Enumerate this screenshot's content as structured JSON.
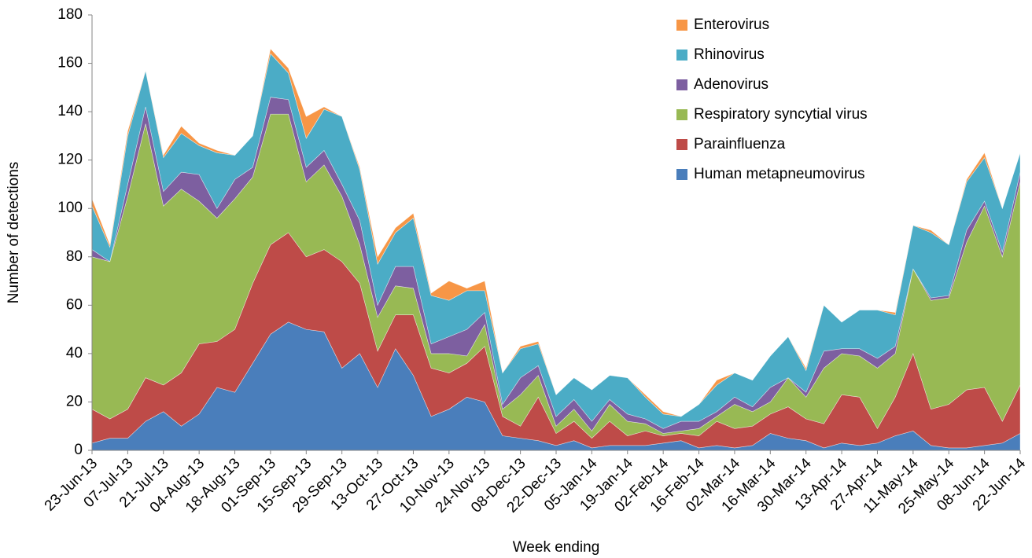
{
  "chart_data": {
    "type": "stacked_area",
    "x_label": "Week ending",
    "y_label": "Number of detections",
    "categories": [
      "23-Jun-13",
      null,
      "07-Jul-13",
      null,
      "21-Jul-13",
      null,
      "04-Aug-13",
      null,
      "18-Aug-13",
      null,
      "01-Sep-13",
      null,
      "15-Sep-13",
      null,
      "29-Sep-13",
      null,
      "13-Oct-13",
      null,
      "27-Oct-13",
      null,
      "10-Nov-13",
      null,
      "24-Nov-13",
      null,
      "08-Dec-13",
      null,
      "22-Dec-13",
      null,
      "05-Jan-14",
      null,
      "19-Jan-14",
      null,
      "02-Feb-14",
      null,
      "16-Feb-14",
      null,
      "02-Mar-14",
      null,
      "16-Mar-14",
      null,
      "30-Mar-14",
      null,
      "13-Apr-14",
      null,
      "27-Apr-14",
      null,
      "11-May-14",
      null,
      "25-May-14",
      null,
      "08-Jun-14",
      null,
      "22-Jun-14"
    ],
    "series": [
      {
        "name": "Human metapneumovirus",
        "color": "#4a7ebb",
        "values": [
          3,
          5,
          5,
          12,
          16,
          10,
          15,
          26,
          24,
          36,
          48,
          53,
          50,
          49,
          34,
          40,
          26,
          42,
          31,
          14,
          17,
          22,
          20,
          6,
          5,
          4,
          2,
          4,
          1,
          2,
          2,
          2,
          3,
          4,
          1,
          2,
          1,
          2,
          7,
          5,
          4,
          1,
          3,
          2,
          3,
          6,
          8,
          2,
          1,
          1,
          2,
          3,
          7
        ]
      },
      {
        "name": "Parainfluenza",
        "color": "#be4b48",
        "values": [
          14,
          8,
          12,
          18,
          11,
          22,
          29,
          19,
          26,
          33,
          37,
          37,
          30,
          34,
          44,
          29,
          15,
          14,
          25,
          20,
          15,
          14,
          23,
          8,
          5,
          18,
          5,
          8,
          4,
          10,
          4,
          6,
          3,
          3,
          5,
          10,
          8,
          8,
          8,
          13,
          9,
          10,
          20,
          20,
          6,
          16,
          32,
          15,
          18,
          24,
          24,
          9,
          20
        ]
      },
      {
        "name": "Respiratory syncytial virus",
        "color": "#98b954",
        "values": [
          63,
          65,
          88,
          105,
          74,
          76,
          59,
          51,
          54,
          44,
          54,
          49,
          31,
          35,
          27,
          16,
          14,
          12,
          11,
          6,
          8,
          3,
          9,
          3,
          13,
          9,
          3,
          5,
          3,
          7,
          6,
          3,
          1,
          1,
          3,
          2,
          10,
          6,
          5,
          12,
          9,
          23,
          17,
          17,
          25,
          18,
          35,
          45,
          44,
          61,
          75,
          68,
          84
        ]
      },
      {
        "name": "Adenovirus",
        "color": "#7d5fa0",
        "values": [
          3,
          0,
          5,
          7,
          6,
          7,
          11,
          4,
          8,
          4,
          7,
          6,
          6,
          6,
          5,
          10,
          5,
          8,
          9,
          4,
          7,
          11,
          5,
          2,
          7,
          4,
          4,
          4,
          4,
          2,
          3,
          2,
          2,
          4,
          3,
          2,
          3,
          2,
          6,
          0,
          2,
          7,
          2,
          3,
          4,
          3,
          0,
          1,
          1,
          5,
          2,
          2,
          4
        ]
      },
      {
        "name": "Rhinovirus",
        "color": "#4bacc6",
        "values": [
          18,
          6,
          20,
          15,
          14,
          16,
          12,
          23,
          10,
          13,
          18,
          11,
          12,
          17,
          28,
          21,
          17,
          14,
          20,
          20,
          15,
          16,
          9,
          13,
          12,
          9,
          9,
          9,
          13,
          10,
          15,
          9,
          6,
          2,
          7,
          11,
          10,
          11,
          13,
          17,
          9,
          19,
          11,
          16,
          20,
          13,
          18,
          27,
          21,
          20,
          18,
          18,
          8
        ]
      },
      {
        "name": "Enterovirus",
        "color": "#f79646",
        "values": [
          3,
          1,
          2,
          0,
          1,
          3,
          1,
          1,
          0,
          0,
          2,
          2,
          9,
          1,
          0,
          1,
          3,
          2,
          2,
          1,
          8,
          1,
          4,
          0,
          1,
          1,
          0,
          0,
          0,
          0,
          0,
          1,
          1,
          0,
          0,
          2,
          0,
          0,
          0,
          0,
          1,
          0,
          0,
          0,
          0,
          1,
          0,
          1,
          0,
          1,
          2,
          0,
          0
        ]
      }
    ],
    "ylim": [
      0,
      180
    ],
    "yticks": [
      0,
      20,
      40,
      60,
      80,
      100,
      120,
      140,
      160,
      180
    ],
    "legend": "top-right"
  }
}
